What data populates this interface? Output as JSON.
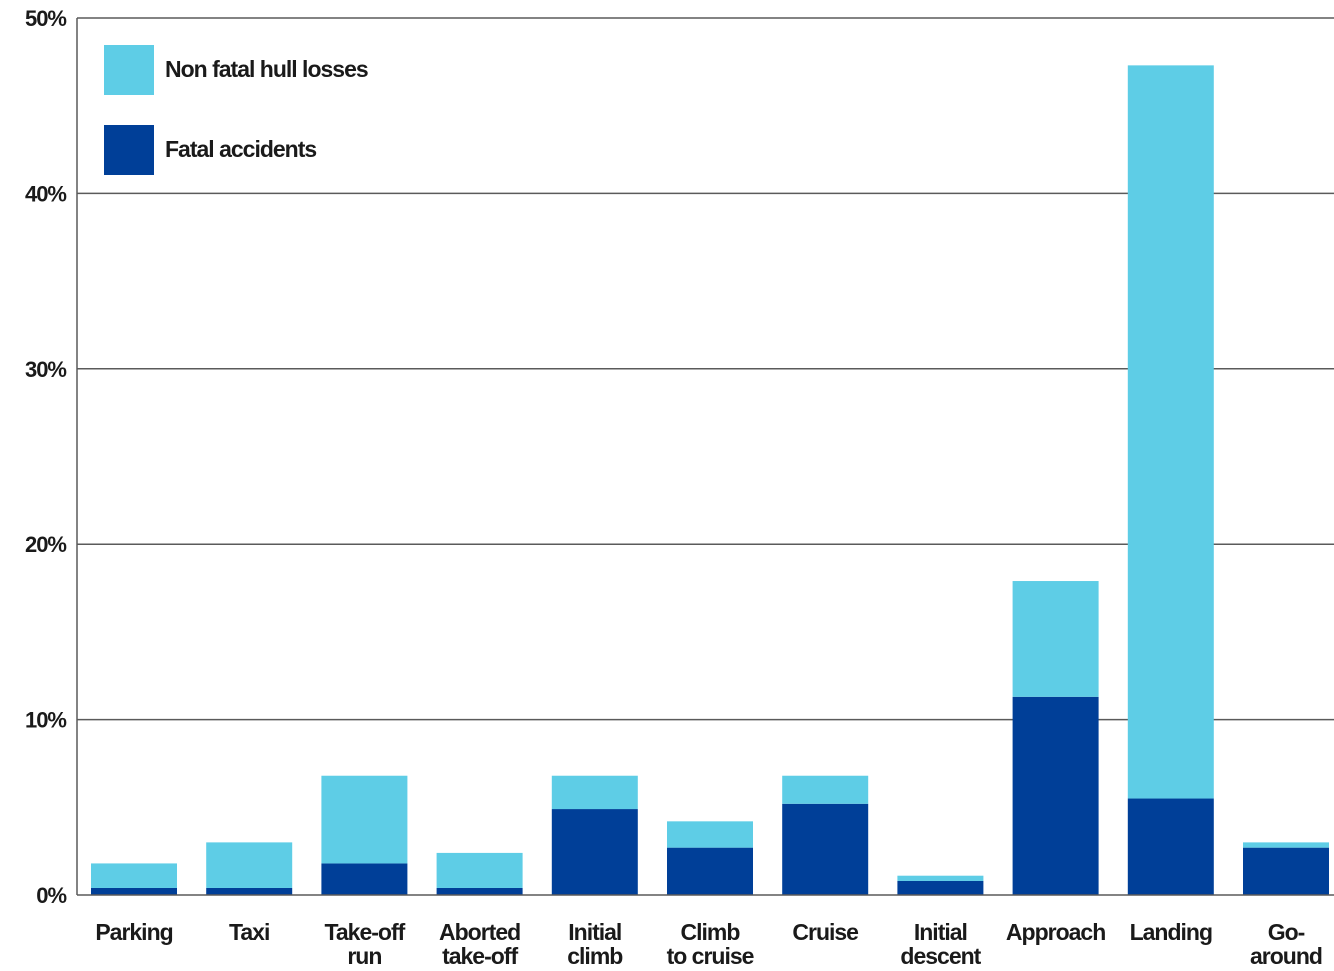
{
  "chart_data": {
    "type": "bar",
    "stacked": true,
    "categories": [
      [
        "Parking"
      ],
      [
        "Taxi"
      ],
      [
        "Take-off",
        "run"
      ],
      [
        "Aborted",
        "take-off"
      ],
      [
        "Initial",
        "climb"
      ],
      [
        "Climb",
        "to cruise"
      ],
      [
        "Cruise"
      ],
      [
        "Initial",
        "descent"
      ],
      [
        "Approach"
      ],
      [
        "Landing"
      ],
      [
        "Go-",
        "around"
      ]
    ],
    "series": [
      {
        "name": "Fatal accidents",
        "color": "#003f98",
        "values": [
          0.4,
          0.4,
          1.8,
          0.4,
          4.9,
          2.7,
          5.2,
          0.8,
          11.3,
          5.5,
          2.7
        ]
      },
      {
        "name": "Non fatal hull losses",
        "color": "#5ecde6",
        "values": [
          1.4,
          2.6,
          5.0,
          2.0,
          1.9,
          1.5,
          1.6,
          0.3,
          6.6,
          41.8,
          0.3
        ]
      }
    ],
    "legend_order": [
      "Non fatal hull losses",
      "Fatal accidents"
    ],
    "legend_position": "top-left",
    "y_ticks": [
      "0%",
      "10%",
      "20%",
      "30%",
      "40%",
      "50%"
    ],
    "ylim": [
      0,
      50
    ],
    "grid": true,
    "title": "",
    "xlabel": "",
    "ylabel": ""
  }
}
